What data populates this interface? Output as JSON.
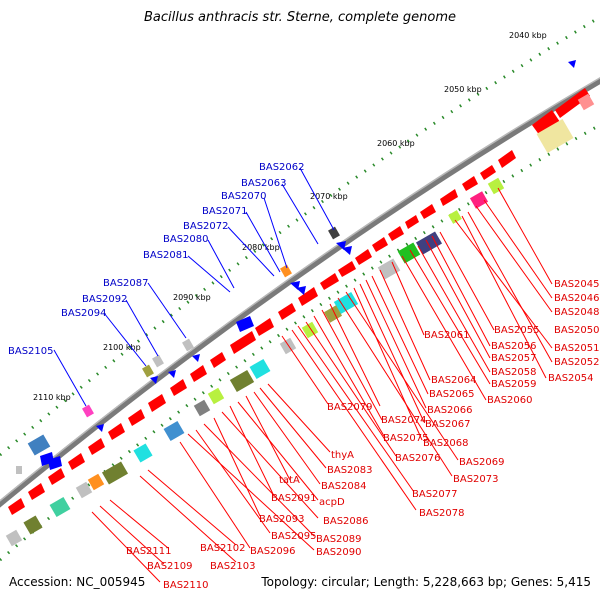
{
  "title": "Bacillus anthracis str. Sterne, complete genome",
  "footer": {
    "accession": "Accession: NC_005945",
    "info": "Topology: circular; Length: 5,228,663 bp; Genes: 5,415"
  },
  "ticks": [
    "2040 kbp",
    "2050 kbp",
    "2060 kbp",
    "2070 kbp",
    "2080 kbp",
    "2090 kbp",
    "2100 kbp",
    "2110 kbp"
  ],
  "labels_blue": [
    "BAS2062",
    "BAS2063",
    "BAS2070",
    "BAS2071",
    "BAS2072",
    "BAS2080",
    "BAS2081",
    "BAS2087",
    "BAS2092",
    "BAS2094",
    "BAS2105"
  ],
  "labels_red_right": [
    "BAS2045",
    "BAS2046",
    "BAS2048",
    "BAS2050",
    "BAS2051",
    "BAS2052",
    "BAS2054",
    "BAS2055",
    "BAS2056",
    "BAS2057",
    "BAS2058",
    "BAS2059",
    "BAS2060",
    "BAS2061"
  ],
  "labels_red_mid": [
    "BAS2064",
    "BAS2065",
    "BAS2066",
    "BAS2067",
    "BAS2068",
    "BAS2069",
    "BAS2073",
    "BAS2074",
    "BAS2075",
    "BAS2076",
    "BAS2077",
    "BAS2078",
    "BAS2079"
  ],
  "labels_red_lower": [
    "thyA",
    "BAS2083",
    "BAS2084",
    "tatA",
    "acpD",
    "BAS2091",
    "BAS2086",
    "BAS2093",
    "BAS2089",
    "BAS2095",
    "BAS2090",
    "BAS2096",
    "BAS2102",
    "BAS2103",
    "BAS2111",
    "BAS2109",
    "BAS2110"
  ],
  "colors": {
    "forward": "#ff0000",
    "reverse": "#0000ff",
    "backbone": "#808080",
    "tick": "#008000",
    "label_blue": "#0000c8",
    "label_red": "#e00000"
  }
}
